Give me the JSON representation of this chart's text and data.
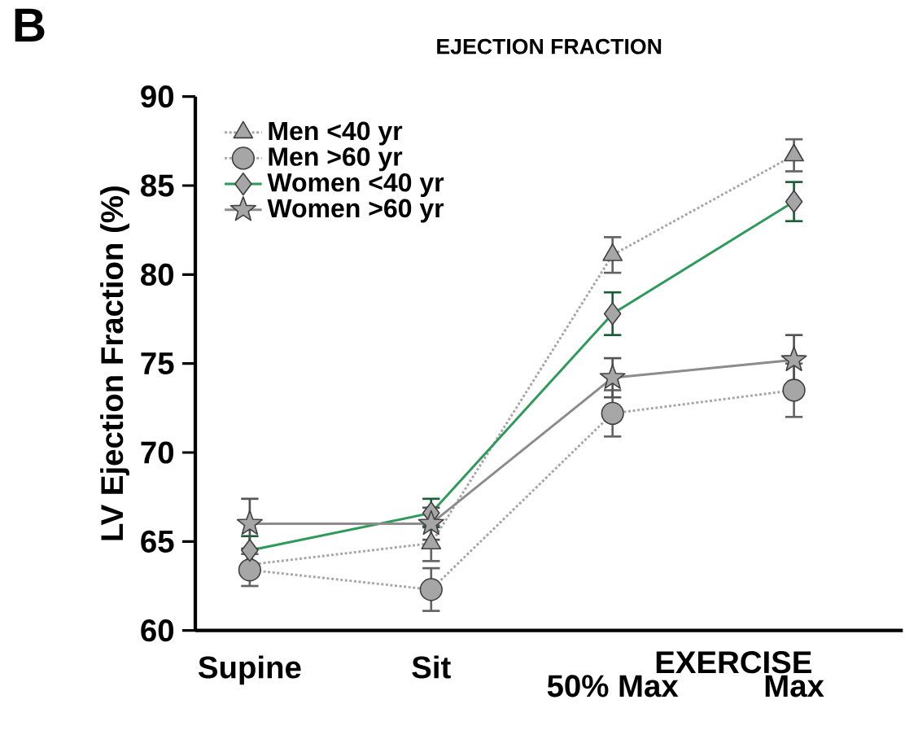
{
  "chart_data": {
    "type": "line",
    "title": "EJECTION FRACTION",
    "ylabel": "LV Ejection Fraction (%)",
    "annotations": [
      "B",
      "EXERCISE"
    ],
    "categories": [
      "Supine",
      "Sit",
      "50% Max",
      "Max"
    ],
    "ylim": [
      60,
      90
    ],
    "yticks": [
      60,
      65,
      70,
      75,
      80,
      85,
      90
    ],
    "grid": false,
    "legend": "top left",
    "series": [
      {
        "name": "Men <40 yr",
        "color": "#a6a6a6",
        "marker": "triangle",
        "line_style": "dotted",
        "values": [
          63.7,
          64.9,
          81.1,
          86.7
        ],
        "errors": [
          null,
          1.0,
          1.0,
          0.9
        ]
      },
      {
        "name": "Men >60 yr",
        "color": "#a6a6a6",
        "marker": "circle",
        "line_style": "dotted",
        "values": [
          63.4,
          62.3,
          72.2,
          73.5
        ],
        "errors": [
          0.9,
          1.2,
          1.3,
          1.5
        ]
      },
      {
        "name": "Women <40 yr",
        "color": "#2e9a5a",
        "marker": "diamond",
        "line_style": "solid",
        "values": [
          64.5,
          66.6,
          77.8,
          84.1
        ],
        "errors": [
          0.8,
          0.8,
          1.2,
          1.1
        ]
      },
      {
        "name": "Women >60 yr",
        "color": "#8c8c8c",
        "marker": "star",
        "line_style": "solid",
        "values": [
          66.0,
          66.0,
          74.2,
          75.2
        ],
        "errors": [
          1.4,
          0.9,
          1.1,
          1.4
        ]
      }
    ]
  }
}
